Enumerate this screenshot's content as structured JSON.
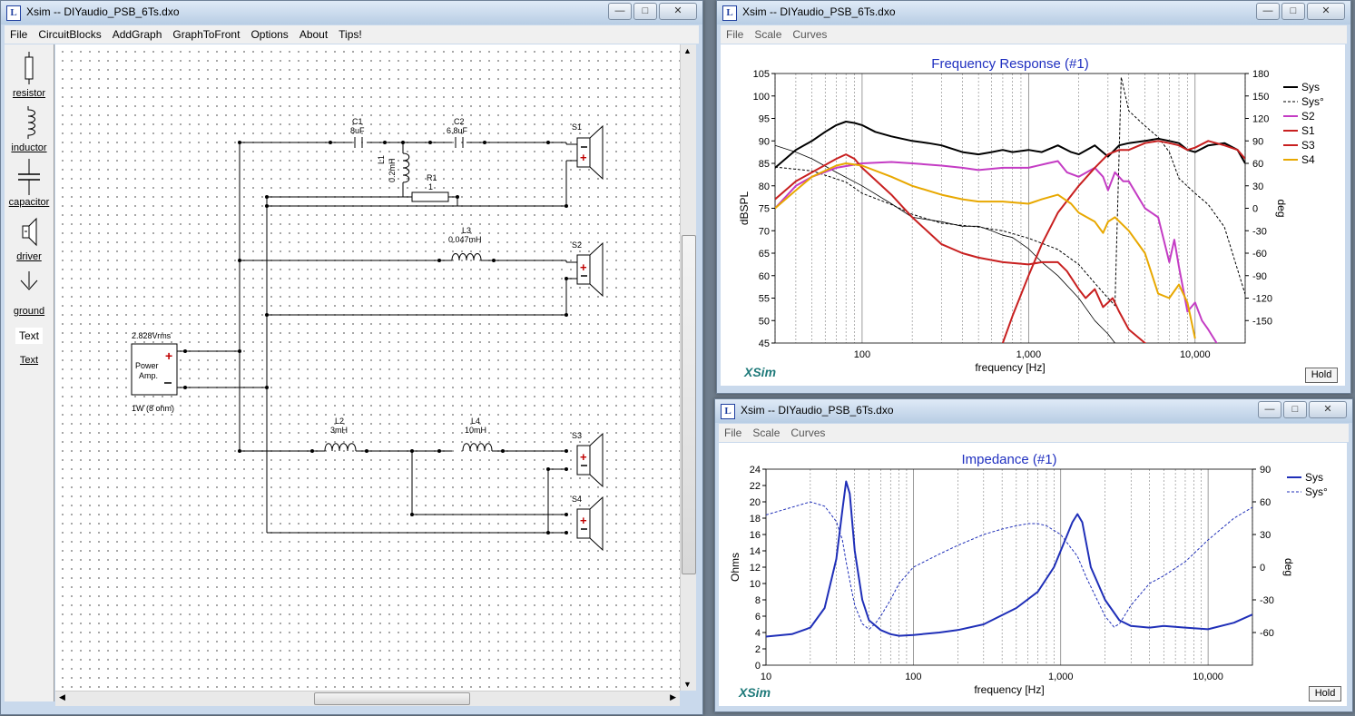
{
  "windows": {
    "circuit": {
      "title": "Xsim -- DIYaudio_PSB_6Ts.dxo",
      "menu": [
        "File",
        "CircuitBlocks",
        "AddGraph",
        "GraphToFront",
        "Options",
        "About",
        "Tips!"
      ]
    },
    "freq": {
      "title": "Xsim -- DIYaudio_PSB_6Ts.dxo",
      "menu": [
        "File",
        "Scale",
        "Curves"
      ],
      "hold": "Hold",
      "logo": "XSim"
    },
    "imp": {
      "title": "Xsim -- DIYaudio_PSB_6Ts.dxo",
      "menu": [
        "File",
        "Scale",
        "Curves"
      ],
      "hold": "Hold",
      "logo": "XSim"
    }
  },
  "palette": {
    "items": [
      {
        "icon": "resistor-icon",
        "label": "resistor"
      },
      {
        "icon": "inductor-icon",
        "label": "inductor"
      },
      {
        "icon": "capacitor-icon",
        "label": "capacitor"
      },
      {
        "icon": "driver-icon",
        "label": "driver"
      },
      {
        "icon": "ground-icon",
        "label": "ground"
      },
      {
        "icon": "text-icon",
        "label": "Text",
        "glyph": "Text"
      }
    ]
  },
  "circuit": {
    "source": {
      "voltage": "2.828Vrms",
      "name1": "Power",
      "name2": "Amp.",
      "power": "1W (8 ohm)"
    },
    "components": [
      {
        "id": "C1",
        "value": "8uF"
      },
      {
        "id": "C2",
        "value": "6.8uF"
      },
      {
        "id": "L1",
        "value": "0.2mH"
      },
      {
        "id": "R1",
        "value": "1"
      },
      {
        "id": "L3",
        "value": "0.047mH"
      },
      {
        "id": "L2",
        "value": "3mH"
      },
      {
        "id": "L4",
        "value": "10mH"
      }
    ],
    "drivers": [
      "S1",
      "S2",
      "S3",
      "S4"
    ]
  },
  "chart_data": [
    {
      "type": "line",
      "title": "Frequency Response (#1)",
      "xlabel": "frequency [Hz]",
      "ylabel": "dBSPL",
      "y2label": "deg",
      "xscale": "log",
      "xlim": [
        30,
        20000
      ],
      "ylim": [
        45,
        105
      ],
      "y2lim": [
        -180,
        180
      ],
      "xticks": [
        "100",
        "1,000",
        "10,000"
      ],
      "yticks": [
        "105",
        "100",
        "95",
        "90",
        "85",
        "80",
        "75",
        "70",
        "65",
        "60",
        "55",
        "50",
        "45"
      ],
      "y2ticks": [
        "180",
        "150",
        "120",
        "90",
        "60",
        "30",
        "0",
        "-30",
        "-60",
        "-90",
        "-120",
        "-150"
      ],
      "legend_position": "right",
      "grid": true,
      "series": [
        {
          "name": "Sys",
          "color": "#000000",
          "style": "solid",
          "axis": "left",
          "x": [
            30,
            40,
            50,
            60,
            70,
            80,
            90,
            100,
            120,
            150,
            200,
            250,
            300,
            400,
            500,
            600,
            700,
            800,
            1000,
            1200,
            1500,
            1800,
            2000,
            2500,
            3000,
            3500,
            4000,
            5000,
            6000,
            7000,
            8000,
            9000,
            10000,
            12000,
            15000,
            18000,
            20000
          ],
          "y": [
            84,
            88,
            90,
            92,
            93.5,
            94.3,
            94,
            93.5,
            92,
            91,
            90,
            89.5,
            89,
            87.5,
            87,
            87.5,
            88,
            87.5,
            88,
            87.5,
            89,
            87.5,
            87,
            89,
            86.5,
            89,
            89.5,
            90,
            90.5,
            90,
            89.5,
            88,
            87.5,
            89,
            89.5,
            88,
            85
          ]
        },
        {
          "name": "Sys°",
          "color": "#000000",
          "style": "dashed",
          "axis": "right",
          "x": [
            30,
            50,
            80,
            100,
            150,
            200,
            300,
            500,
            700,
            1000,
            1500,
            2000,
            2500,
            3000,
            3300,
            3600,
            4000,
            5000,
            6000,
            7000,
            8000,
            10000,
            12000,
            15000,
            20000
          ],
          "y": [
            55,
            50,
            35,
            20,
            5,
            -8,
            -20,
            -25,
            -30,
            -40,
            -55,
            -75,
            -100,
            -120,
            -130,
            175,
            130,
            110,
            95,
            75,
            40,
            20,
            5,
            -25,
            -115
          ]
        },
        {
          "name": "S2",
          "color": "#c43cc4",
          "style": "solid",
          "axis": "left",
          "x": [
            30,
            40,
            50,
            70,
            100,
            150,
            200,
            300,
            400,
            500,
            700,
            1000,
            1300,
            1500,
            1700,
            2000,
            2500,
            2800,
            3000,
            3300,
            3700,
            4000,
            5000,
            6000,
            7000,
            7500,
            8000,
            9000,
            10000,
            11000,
            12000,
            14000
          ],
          "y": [
            75,
            80,
            82,
            84,
            85,
            85.3,
            85,
            84.5,
            84,
            83.5,
            84,
            84,
            85,
            85.5,
            83,
            82,
            84,
            82,
            79,
            83,
            81,
            81,
            75,
            73,
            63,
            68,
            62,
            52,
            54,
            50,
            48,
            44
          ]
        },
        {
          "name": "S1",
          "color": "#c82020",
          "style": "solid",
          "axis": "left",
          "x": [
            700,
            800,
            1000,
            1200,
            1500,
            2000,
            2500,
            3000,
            3500,
            4000,
            5000,
            6000,
            7000,
            8000,
            9000,
            10000,
            12000,
            15000,
            18000,
            20000
          ],
          "y": [
            45,
            51,
            60,
            67,
            74,
            80,
            84,
            87,
            88,
            88,
            89.5,
            90,
            89.5,
            89,
            88,
            88.5,
            90,
            89,
            88,
            86
          ]
        },
        {
          "name": "S3",
          "color": "#c82020",
          "style": "solid",
          "axis": "left",
          "x": [
            30,
            40,
            50,
            70,
            80,
            90,
            100,
            150,
            200,
            300,
            400,
            500,
            700,
            1000,
            1200,
            1500,
            1700,
            2000,
            2200,
            2500,
            2800,
            3000,
            3200,
            3500,
            4000,
            5000,
            5500
          ],
          "y": [
            77,
            81,
            83,
            86,
            87,
            86,
            84,
            78,
            73,
            67,
            65,
            64,
            63,
            62.5,
            63,
            63,
            61,
            57,
            55,
            57,
            53,
            54,
            55,
            52,
            48,
            45,
            44
          ]
        },
        {
          "name": "S4",
          "color": "#e8a800",
          "style": "solid",
          "axis": "left",
          "x": [
            30,
            40,
            50,
            70,
            80,
            100,
            150,
            200,
            300,
            400,
            500,
            700,
            1000,
            1200,
            1500,
            1800,
            2000,
            2500,
            2800,
            3000,
            3300,
            4000,
            5000,
            6000,
            7000,
            8000,
            9000,
            10000
          ],
          "y": [
            75,
            79,
            82,
            84.5,
            85,
            84.5,
            82,
            80,
            78,
            77,
            76.5,
            76.5,
            76,
            77,
            78,
            76,
            74,
            72,
            69.5,
            72,
            73,
            70,
            65,
            56,
            55,
            58,
            54,
            46
          ]
        }
      ],
      "extra_unlabeled_series": [
        {
          "color": "#000000",
          "style": "thin-solid",
          "x": [
            30,
            40,
            50,
            70,
            100,
            150,
            200,
            300,
            400,
            500,
            600,
            700,
            800,
            1000,
            1200,
            1500,
            2000,
            2500,
            3000,
            3300
          ],
          "y": [
            89,
            87.5,
            86,
            83,
            80,
            76,
            73,
            72,
            71,
            71,
            70,
            69,
            68.5,
            66,
            63,
            60,
            55,
            50,
            47,
            45
          ]
        }
      ]
    },
    {
      "type": "line",
      "title": "Impedance (#1)",
      "xlabel": "frequency [Hz]",
      "ylabel": "Ohms",
      "y2label": "deg",
      "xscale": "log",
      "xlim": [
        10,
        20000
      ],
      "ylim": [
        0,
        24
      ],
      "y2lim": [
        -90,
        90
      ],
      "xticks": [
        "10",
        "100",
        "1,000",
        "10,000"
      ],
      "yticks": [
        "24",
        "22",
        "20",
        "18",
        "16",
        "14",
        "12",
        "10",
        "8",
        "6",
        "4",
        "2",
        "0"
      ],
      "y2ticks": [
        "90",
        "60",
        "30",
        "0",
        "-30",
        "-60"
      ],
      "legend_position": "right",
      "grid": true,
      "series": [
        {
          "name": "Sys",
          "color": "#1f2fb8",
          "style": "solid",
          "axis": "left",
          "x": [
            10,
            15,
            20,
            25,
            30,
            33,
            35,
            37,
            40,
            45,
            50,
            60,
            70,
            80,
            100,
            150,
            200,
            300,
            500,
            700,
            900,
            1000,
            1200,
            1300,
            1400,
            1600,
            2000,
            2500,
            3000,
            4000,
            5000,
            7000,
            10000,
            15000,
            20000
          ],
          "y": [
            3.5,
            3.8,
            4.6,
            7,
            13,
            19,
            22.5,
            21,
            14,
            8,
            5.5,
            4.3,
            3.8,
            3.6,
            3.7,
            4,
            4.3,
            5,
            7,
            9,
            12,
            14,
            17.5,
            18.5,
            17.5,
            12,
            8,
            5.5,
            4.8,
            4.6,
            4.8,
            4.6,
            4.4,
            5.2,
            6.2
          ]
        },
        {
          "name": "Sys°",
          "color": "#1f2fb8",
          "style": "dashed",
          "axis": "right",
          "x": [
            10,
            15,
            20,
            25,
            30,
            33,
            35,
            38,
            40,
            45,
            50,
            55,
            60,
            70,
            80,
            100,
            150,
            200,
            300,
            400,
            500,
            600,
            700,
            800,
            1000,
            1300,
            1500,
            2000,
            2300,
            2500,
            3000,
            4000,
            5000,
            7000,
            10000,
            15000,
            20000
          ],
          "y": [
            48,
            55,
            60,
            56,
            42,
            25,
            5,
            -20,
            -35,
            -52,
            -57,
            -52,
            -45,
            -30,
            -15,
            0,
            12,
            20,
            30,
            35,
            38,
            40,
            40,
            38,
            30,
            10,
            -10,
            -45,
            -55,
            -52,
            -35,
            -15,
            -8,
            5,
            25,
            45,
            55
          ]
        }
      ]
    }
  ]
}
